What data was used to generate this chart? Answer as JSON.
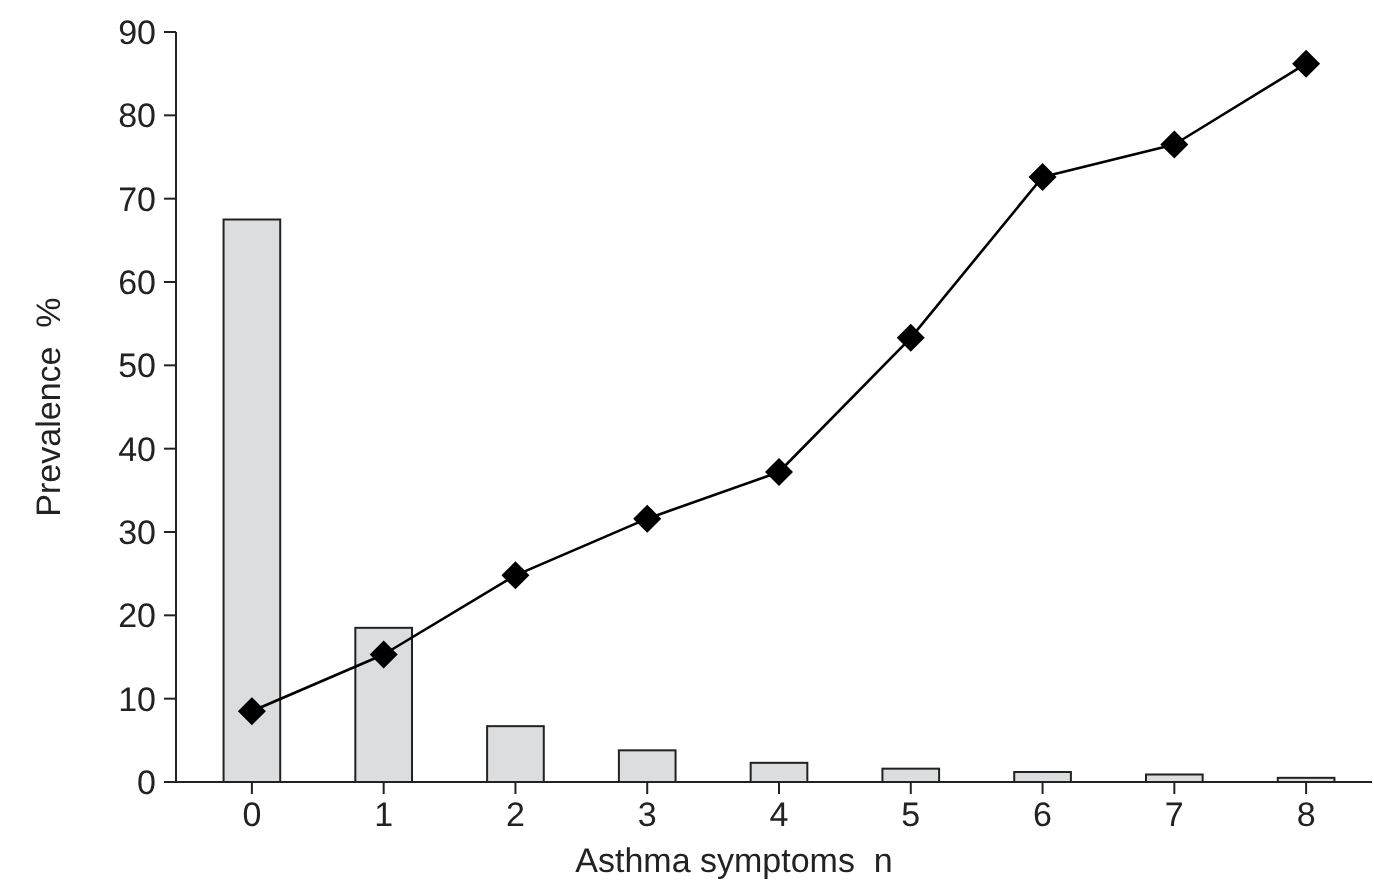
{
  "chart_data": {
    "type": "bar",
    "xlabel": "Asthma symptoms  n",
    "ylabel": "Prevalence  %",
    "categories": [
      "0",
      "1",
      "2",
      "3",
      "4",
      "5",
      "6",
      "7",
      "8"
    ],
    "ylim": [
      0,
      90
    ],
    "yticks": [
      0,
      10,
      20,
      30,
      40,
      50,
      60,
      70,
      80,
      90
    ],
    "grid": false,
    "series": [
      {
        "color": "#dcdddf",
        "values": [
          67.5,
          18.5,
          6.7,
          3.8,
          2.3,
          1.6,
          1.2,
          0.9,
          0.5
        ]
      },
      {
        "type": "line",
        "color": "#000000",
        "marker": "diamond",
        "line_style": "solid",
        "values": [
          8.5,
          15.3,
          24.8,
          31.6,
          37.2,
          53.3,
          72.6,
          76.5,
          86.2
        ]
      }
    ]
  }
}
